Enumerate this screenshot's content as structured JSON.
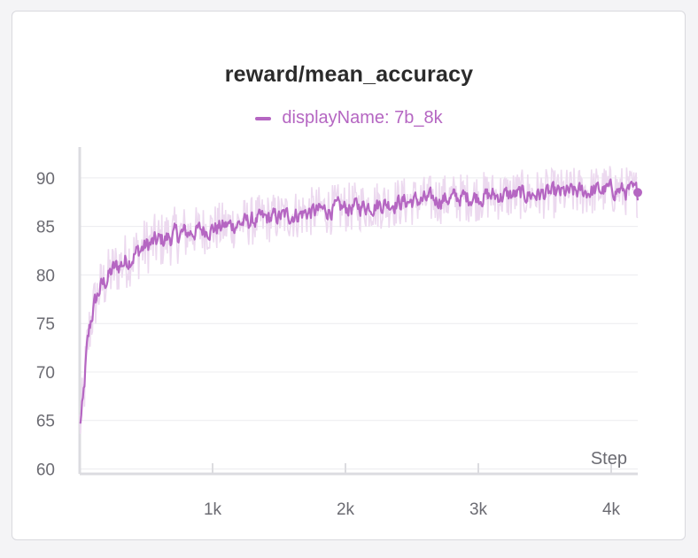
{
  "chart_data": {
    "type": "line",
    "title": "reward/mean_accuracy",
    "xlabel": "Step",
    "ylabel": "",
    "xlim": [
      0,
      4200
    ],
    "ylim": [
      59.5,
      93
    ],
    "x_ticks": [
      1000,
      2000,
      3000,
      4000
    ],
    "x_tick_labels": [
      "1k",
      "2k",
      "3k",
      "4k"
    ],
    "y_ticks": [
      60,
      65,
      70,
      75,
      80,
      85,
      90
    ],
    "y_tick_labels": [
      "60",
      "65",
      "70",
      "75",
      "80",
      "85",
      "90"
    ],
    "grid": true,
    "legend_position": "top-center",
    "series": [
      {
        "name": "displayName: 7b_8k",
        "color": "#b566c2",
        "raw_color": "#ecd9ef",
        "x": [
          0,
          25,
          50,
          75,
          100,
          150,
          200,
          250,
          300,
          400,
          500,
          600,
          700,
          800,
          900,
          1000,
          1200,
          1400,
          1600,
          1800,
          2000,
          2200,
          2400,
          2600,
          2800,
          3000,
          3200,
          3400,
          3600,
          3800,
          4000,
          4200
        ],
        "values": [
          64.5,
          66.5,
          71.5,
          74.5,
          76.5,
          78.5,
          79.5,
          80.5,
          81.0,
          82.0,
          83.0,
          83.5,
          84.0,
          84.3,
          84.6,
          84.8,
          85.3,
          85.8,
          86.2,
          86.6,
          86.9,
          87.2,
          87.5,
          87.7,
          87.9,
          88.1,
          88.2,
          88.3,
          88.4,
          88.6,
          88.8,
          88.5
        ]
      }
    ]
  }
}
